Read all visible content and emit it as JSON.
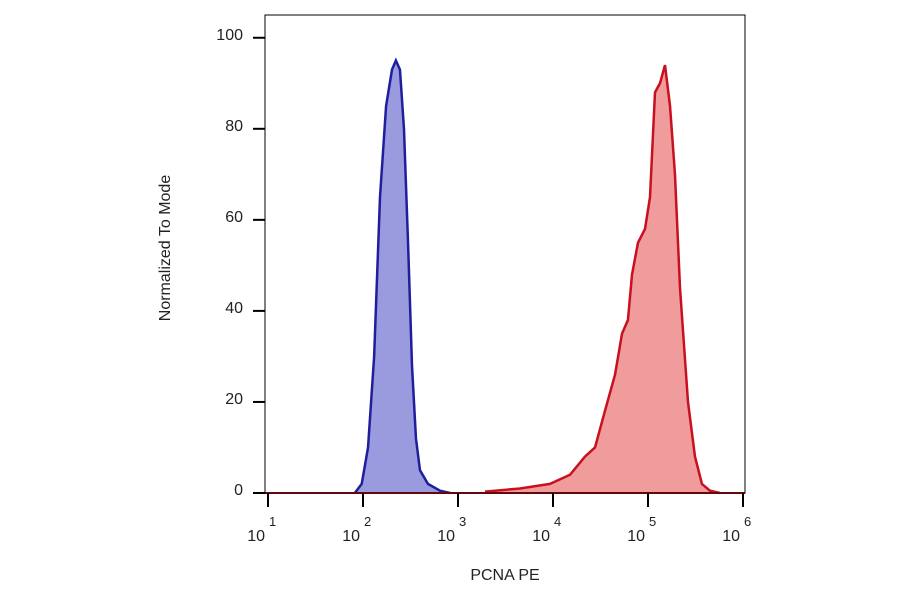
{
  "chart_data": {
    "type": "histogram-overlay",
    "x_label": "PCNA PE",
    "y_label": "Normalized To Mode",
    "x_scale": "log",
    "xlim": [
      9.3,
      1050000
    ],
    "ylim": [
      0,
      105
    ],
    "xticks": [
      {
        "value": 10,
        "label": "10",
        "exponent": "1"
      },
      {
        "value": 100,
        "label": "10",
        "exponent": "2"
      },
      {
        "value": 1000,
        "label": "10",
        "exponent": "3"
      },
      {
        "value": 10000,
        "label": "10",
        "exponent": "4"
      },
      {
        "value": 100000,
        "label": "10",
        "exponent": "5"
      },
      {
        "value": 1000000,
        "label": "10",
        "exponent": "6"
      }
    ],
    "yticks": [
      0,
      20,
      40,
      60,
      80,
      100
    ],
    "series": [
      {
        "color": "#1f1f9c",
        "fill": "#9a9ade",
        "x": [
          82,
          97,
          113,
          131,
          151,
          175,
          202,
          222,
          245,
          270,
          298,
          328,
          361,
          398,
          483,
          647,
          824
        ],
        "values": [
          0,
          2,
          10,
          30,
          65,
          85,
          93,
          95,
          93,
          80,
          55,
          28,
          12,
          5,
          2,
          0.5,
          0
        ]
      },
      {
        "color": "#c8101e",
        "fill": "#f09c9c",
        "x": [
          1923,
          4498,
          9290,
          15100,
          21700,
          27700,
          35200,
          45000,
          53300,
          61500,
          67900,
          78500,
          93000,
          105000,
          118500,
          133700,
          151000,
          170600,
          192300,
          217300,
          263700,
          312400,
          369700,
          449500,
          573000
        ],
        "values": [
          0.3,
          1,
          2,
          4,
          8,
          10,
          18,
          26,
          35,
          38,
          48,
          55,
          58,
          65,
          88,
          90,
          94,
          85,
          70,
          45,
          20,
          8,
          2,
          0.5,
          0
        ]
      }
    ]
  }
}
